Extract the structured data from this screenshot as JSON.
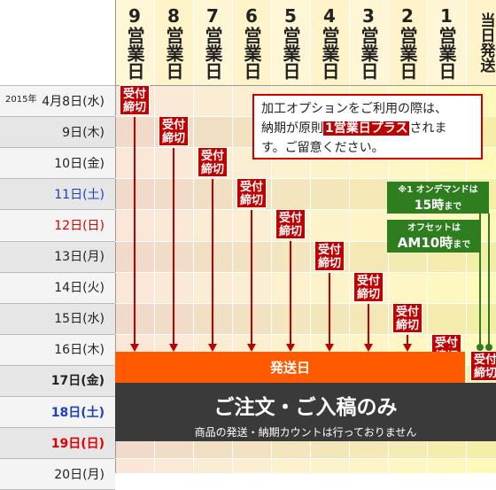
{
  "columns": [
    {
      "label": "9営業日"
    },
    {
      "label": "8営業日"
    },
    {
      "label": "7営業日"
    },
    {
      "label": "6営業日"
    },
    {
      "label": "5営業日"
    },
    {
      "label": "4営業日"
    },
    {
      "label": "3営業日"
    },
    {
      "label": "2営業日"
    },
    {
      "label": "1営業日"
    },
    {
      "label": "当日発送"
    }
  ],
  "year_label": "2015年",
  "rows": [
    {
      "label": "4月8日(水)",
      "color": "#222222",
      "bold": false
    },
    {
      "label": "9日(木)",
      "color": "#222222",
      "bold": false
    },
    {
      "label": "10日(金)",
      "color": "#222222",
      "bold": false
    },
    {
      "label": "11日(土)",
      "color": "#1a3fbf",
      "bold": false
    },
    {
      "label": "12日(日)",
      "color": "#e00000",
      "bold": false
    },
    {
      "label": "13日(月)",
      "color": "#222222",
      "bold": false
    },
    {
      "label": "14日(火)",
      "color": "#222222",
      "bold": false
    },
    {
      "label": "15日(水)",
      "color": "#222222",
      "bold": false
    },
    {
      "label": "16日(木)",
      "color": "#222222",
      "bold": false
    },
    {
      "label": "17日(金)",
      "color": "#222222",
      "bold": true
    },
    {
      "label": "18日(土)",
      "color": "#1a3fbf",
      "bold": true
    },
    {
      "label": "19日(日)",
      "color": "#e00000",
      "bold": true
    },
    {
      "label": "20日(月)",
      "color": "#222222",
      "bold": false
    }
  ],
  "deadline_badge": {
    "line1": "受付",
    "line2": "締切"
  },
  "note": {
    "line1": "加工オプションをご利用の際は、",
    "line2_pre": "納期が原則",
    "line2_highlight": "1営業日プラス",
    "line2_post": "されま",
    "line3": "す。ご留意ください。"
  },
  "ondemand_note": {
    "line1": "※1 オンデマンドは",
    "line2": "15時",
    "line2_suffix": "まで"
  },
  "offset_note": {
    "line1": "オフセットは",
    "line2": "AM10時",
    "line2_suffix": "まで"
  },
  "ship_bar": {
    "label": "発送日"
  },
  "order_only": {
    "title": "ご注文・ご入稿のみ",
    "subtitle": "商品の発送・納期カウントは行っておりません"
  },
  "colors": {
    "accent_red": "#c00000",
    "ship_orange": "#ff5a00",
    "dark_band": "#3a3a3a",
    "green": "#2e7d1e"
  }
}
